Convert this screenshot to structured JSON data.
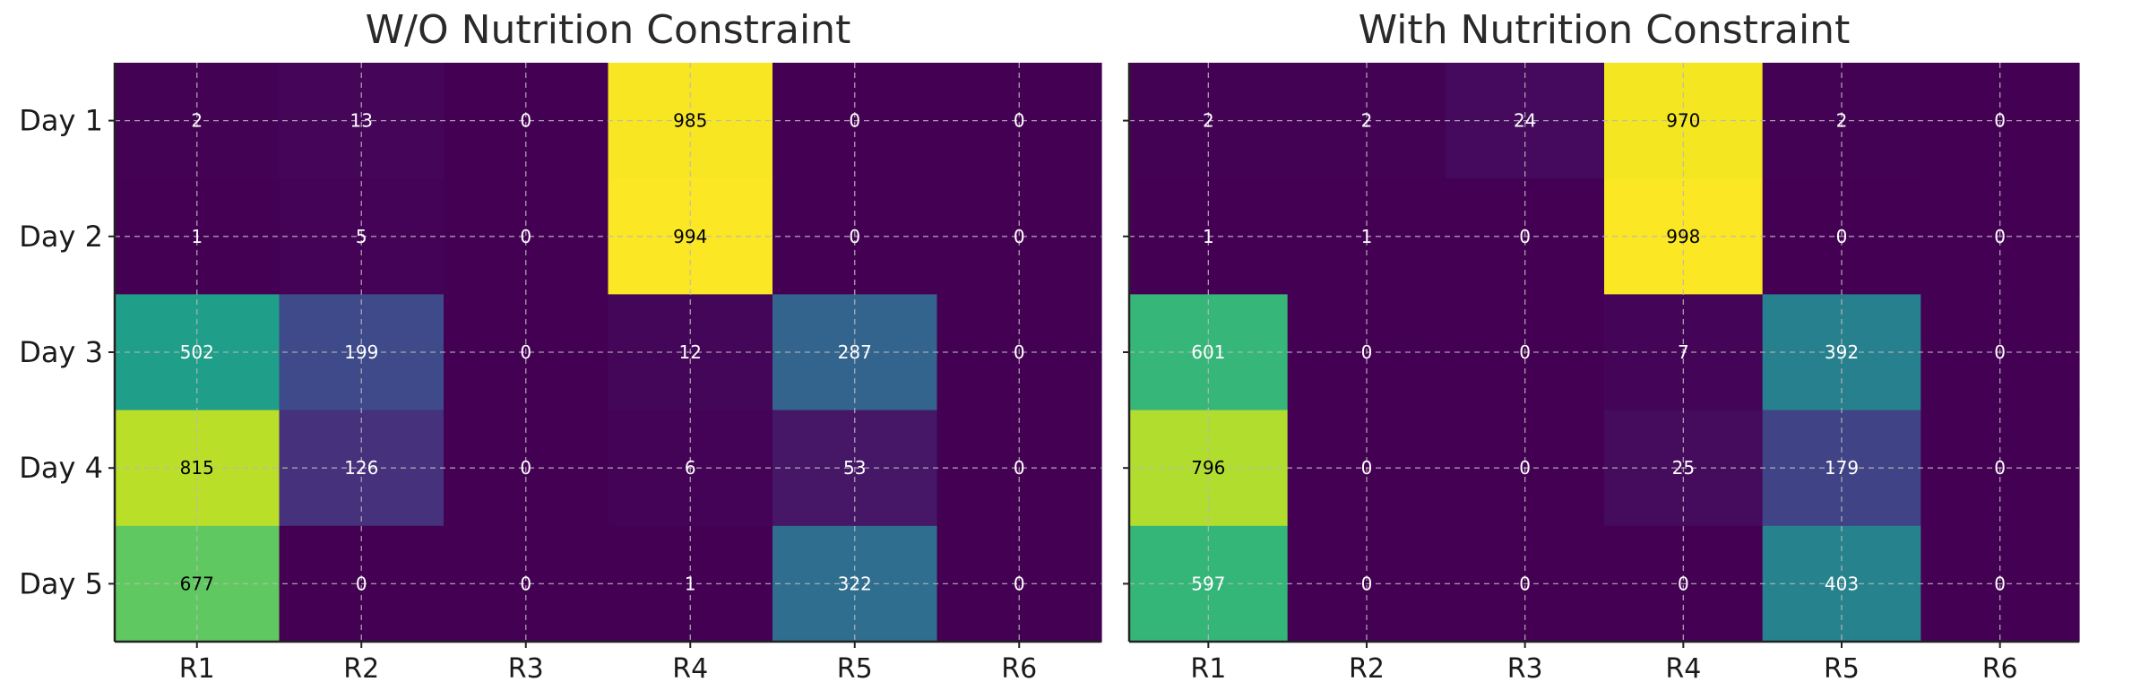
{
  "chart_data": [
    {
      "type": "heatmap",
      "title": "W/O Nutrition Constraint",
      "xlabel": "",
      "ylabel": "",
      "x_categories": [
        "R1",
        "R2",
        "R3",
        "R4",
        "R5",
        "R6"
      ],
      "y_categories": [
        "Day 1",
        "Day 2",
        "Day 3",
        "Day 4",
        "Day 5"
      ],
      "values": [
        [
          2,
          13,
          0,
          985,
          0,
          0
        ],
        [
          1,
          5,
          0,
          994,
          0,
          0
        ],
        [
          502,
          199,
          0,
          12,
          287,
          0
        ],
        [
          815,
          126,
          0,
          6,
          53,
          0
        ],
        [
          677,
          0,
          0,
          1,
          322,
          0
        ]
      ],
      "value_range": [
        0,
        1000
      ],
      "colormap": "viridis",
      "grid": true,
      "cell_labels": true
    },
    {
      "type": "heatmap",
      "title": "With Nutrition Constraint",
      "xlabel": "",
      "ylabel": "",
      "x_categories": [
        "R1",
        "R2",
        "R3",
        "R4",
        "R5",
        "R6"
      ],
      "y_categories": [
        "Day 1",
        "Day 2",
        "Day 3",
        "Day 4",
        "Day 5"
      ],
      "values": [
        [
          2,
          2,
          24,
          970,
          2,
          0
        ],
        [
          1,
          1,
          0,
          998,
          0,
          0
        ],
        [
          601,
          0,
          0,
          7,
          392,
          0
        ],
        [
          796,
          0,
          0,
          25,
          179,
          0
        ],
        [
          597,
          0,
          0,
          0,
          403,
          0
        ]
      ],
      "value_range": [
        0,
        1000
      ],
      "colormap": "viridis",
      "grid": true,
      "cell_labels": true
    }
  ]
}
